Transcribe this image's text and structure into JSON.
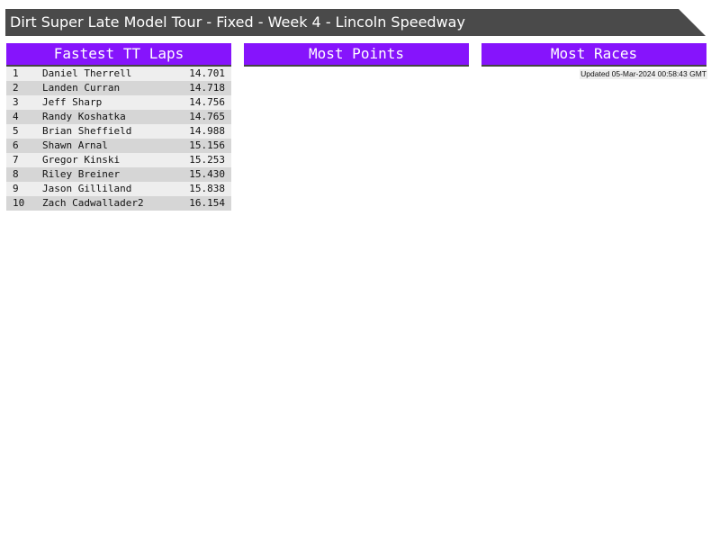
{
  "title": "Dirt Super Late Model Tour - Fixed - Week 4 - Lincoln Speedway",
  "panels": {
    "fastest": {
      "title": "Fastest TT Laps",
      "rows": [
        {
          "pos": "1",
          "name": "Daniel Therrell",
          "time": "14.701"
        },
        {
          "pos": "2",
          "name": "Landen Curran",
          "time": "14.718"
        },
        {
          "pos": "3",
          "name": "Jeff Sharp",
          "time": "14.756"
        },
        {
          "pos": "4",
          "name": "Randy Koshatka",
          "time": "14.765"
        },
        {
          "pos": "5",
          "name": "Brian Sheffield",
          "time": "14.988"
        },
        {
          "pos": "6",
          "name": "Shawn Arnal",
          "time": "15.156"
        },
        {
          "pos": "7",
          "name": "Gregor Kinski",
          "time": "15.253"
        },
        {
          "pos": "8",
          "name": "Riley Breiner",
          "time": "15.430"
        },
        {
          "pos": "9",
          "name": "Jason Gilliland",
          "time": "15.838"
        },
        {
          "pos": "10",
          "name": "Zach Cadwallader2",
          "time": "16.154"
        }
      ]
    },
    "points": {
      "title": "Most Points"
    },
    "races": {
      "title": "Most Races"
    }
  },
  "updated": "Updated 05-Mar-2024 00:58:43 GMT",
  "colors": {
    "header": "#4a4a4a",
    "accent": "#8614fc"
  }
}
